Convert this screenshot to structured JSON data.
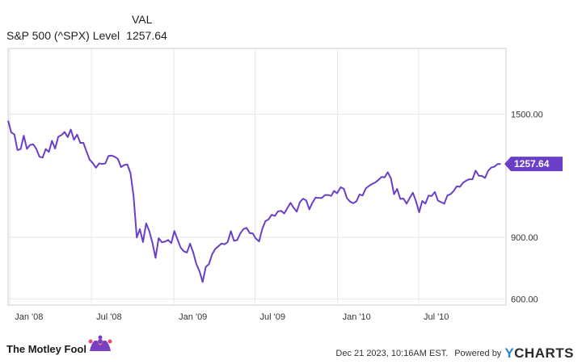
{
  "legend": {
    "column_header": "VAL",
    "series_label": "S&P 500 (^SPX) Level",
    "series_value": "1257.64"
  },
  "footer": {
    "brand": "The Motley Fool",
    "timestamp": "Dec 21 2023, 10:16AM EST.",
    "powered_by": "Powered by",
    "ycharts": "YCHARTS"
  },
  "colors": {
    "series": "#6a3fc8",
    "grid": "#e6e6e6",
    "plot_border": "#cfcfcf",
    "text": "#333333",
    "ycharts_y": "#2f80c8"
  },
  "chart_data": {
    "type": "line",
    "title": "",
    "xlabel": "",
    "ylabel": "",
    "x_tick_labels": [
      "Jan '08",
      "Jul '08",
      "Jan '09",
      "Jul '09",
      "Jan '10",
      "Jul '10"
    ],
    "y_tick_labels": [
      "600.00",
      "900.00",
      "1500.00"
    ],
    "ylim": [
      570,
      1820
    ],
    "grid": true,
    "end_label": "1257.64",
    "series": [
      {
        "name": "S&P 500 (^SPX) Level",
        "x": [
          "2007-12-28",
          "2008-01-04",
          "2008-01-11",
          "2008-01-18",
          "2008-01-25",
          "2008-02-01",
          "2008-02-08",
          "2008-02-15",
          "2008-02-22",
          "2008-02-29",
          "2008-03-07",
          "2008-03-14",
          "2008-03-21",
          "2008-03-28",
          "2008-04-04",
          "2008-04-11",
          "2008-04-18",
          "2008-04-25",
          "2008-05-02",
          "2008-05-09",
          "2008-05-16",
          "2008-05-23",
          "2008-05-30",
          "2008-06-06",
          "2008-06-13",
          "2008-06-20",
          "2008-06-27",
          "2008-07-04",
          "2008-07-11",
          "2008-07-18",
          "2008-07-25",
          "2008-08-01",
          "2008-08-08",
          "2008-08-15",
          "2008-08-22",
          "2008-08-29",
          "2008-09-05",
          "2008-09-12",
          "2008-09-19",
          "2008-09-26",
          "2008-10-03",
          "2008-10-10",
          "2008-10-17",
          "2008-10-24",
          "2008-10-31",
          "2008-11-07",
          "2008-11-14",
          "2008-11-21",
          "2008-11-28",
          "2008-12-05",
          "2008-12-12",
          "2008-12-19",
          "2008-12-26",
          "2009-01-02",
          "2009-01-09",
          "2009-01-16",
          "2009-01-23",
          "2009-01-30",
          "2009-02-06",
          "2009-02-13",
          "2009-02-20",
          "2009-02-27",
          "2009-03-06",
          "2009-03-13",
          "2009-03-20",
          "2009-03-27",
          "2009-04-03",
          "2009-04-10",
          "2009-04-17",
          "2009-04-24",
          "2009-05-01",
          "2009-05-08",
          "2009-05-15",
          "2009-05-22",
          "2009-05-29",
          "2009-06-05",
          "2009-06-12",
          "2009-06-19",
          "2009-06-26",
          "2009-07-02",
          "2009-07-10",
          "2009-07-17",
          "2009-07-24",
          "2009-07-31",
          "2009-08-07",
          "2009-08-14",
          "2009-08-21",
          "2009-08-28",
          "2009-09-04",
          "2009-09-11",
          "2009-09-18",
          "2009-09-25",
          "2009-10-02",
          "2009-10-09",
          "2009-10-16",
          "2009-10-23",
          "2009-10-30",
          "2009-11-06",
          "2009-11-13",
          "2009-11-20",
          "2009-11-27",
          "2009-12-04",
          "2009-12-11",
          "2009-12-18",
          "2009-12-24",
          "2009-12-31",
          "2010-01-08",
          "2010-01-15",
          "2010-01-22",
          "2010-01-29",
          "2010-02-05",
          "2010-02-12",
          "2010-02-19",
          "2010-02-26",
          "2010-03-05",
          "2010-03-12",
          "2010-03-19",
          "2010-03-26",
          "2010-04-02",
          "2010-04-09",
          "2010-04-16",
          "2010-04-23",
          "2010-04-30",
          "2010-05-07",
          "2010-05-14",
          "2010-05-21",
          "2010-05-28",
          "2010-06-04",
          "2010-06-11",
          "2010-06-18",
          "2010-06-25",
          "2010-07-02",
          "2010-07-09",
          "2010-07-16",
          "2010-07-23",
          "2010-07-30",
          "2010-08-06",
          "2010-08-13",
          "2010-08-20",
          "2010-08-27",
          "2010-09-03",
          "2010-09-10",
          "2010-09-17",
          "2010-09-24",
          "2010-10-01",
          "2010-10-08",
          "2010-10-15",
          "2010-10-22",
          "2010-10-29",
          "2010-11-05",
          "2010-11-12",
          "2010-11-19",
          "2010-11-26",
          "2010-12-03",
          "2010-12-10",
          "2010-12-17",
          "2010-12-24",
          "2010-12-31"
        ],
        "values": [
          1468,
          1411,
          1401,
          1325,
          1330,
          1395,
          1331,
          1350,
          1353,
          1331,
          1293,
          1288,
          1330,
          1316,
          1370,
          1332,
          1390,
          1398,
          1413,
          1388,
          1425,
          1375,
          1400,
          1360,
          1360,
          1318,
          1278,
          1262,
          1239,
          1260,
          1257,
          1260,
          1296,
          1298,
          1292,
          1282,
          1242,
          1252,
          1255,
          1213,
          1099,
          899,
          940,
          877,
          968,
          930,
          873,
          800,
          896,
          876,
          879,
          887,
          872,
          931,
          890,
          850,
          832,
          826,
          869,
          827,
          770,
          735,
          683,
          756,
          769,
          816,
          843,
          856,
          870,
          866,
          877,
          930,
          883,
          887,
          919,
          940,
          946,
          921,
          919,
          896,
          880,
          940,
          979,
          987,
          1010,
          1004,
          1026,
          1029,
          1016,
          1042,
          1068,
          1044,
          1025,
          1071,
          1088,
          1080,
          1036,
          1069,
          1093,
          1092,
          1092,
          1106,
          1106,
          1102,
          1126,
          1115,
          1144,
          1136,
          1091,
          1074,
          1066,
          1075,
          1109,
          1104,
          1138,
          1150,
          1160,
          1167,
          1179,
          1194,
          1192,
          1217,
          1187,
          1110,
          1136,
          1087,
          1089,
          1064,
          1092,
          1117,
          1076,
          1022,
          1077,
          1064,
          1103,
          1101,
          1121,
          1079,
          1071,
          1064,
          1104,
          1110,
          1125,
          1149,
          1146,
          1166,
          1176,
          1183,
          1183,
          1225,
          1200,
          1199,
          1189,
          1224,
          1240,
          1244,
          1257,
          1257.64
        ]
      }
    ]
  }
}
